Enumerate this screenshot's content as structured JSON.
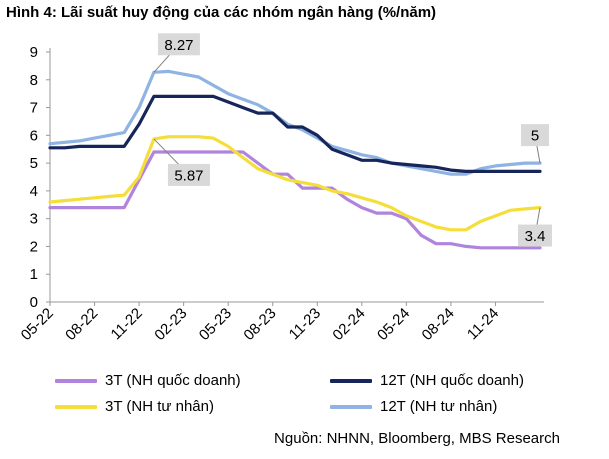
{
  "figure": {
    "title": "Hình 4: Lãi suất huy động của các nhóm ngân hàng (%/năm)",
    "source": "Nguồn: NHNN, Bloomberg, MBS Research"
  },
  "colors": {
    "3t_state": "#b084dc",
    "12t_state": "#17265a",
    "3t_private": "#f5de3a",
    "12t_private": "#8fb3e3",
    "axis": "#999999",
    "callout_bg": "#d9d9d9"
  },
  "chart_data": {
    "type": "line",
    "title": "Hình 4: Lãi suất huy động của các nhóm ngân hàng (%/năm)",
    "xlabel": "",
    "ylabel": "",
    "ylim": [
      0,
      9
    ],
    "yticks": [
      "0",
      "1",
      "2",
      "3",
      "4",
      "5",
      "6",
      "7",
      "8",
      "9"
    ],
    "xticks": [
      "05-22",
      "08-22",
      "11-22",
      "02-23",
      "05-23",
      "08-23",
      "11-23",
      "02-24",
      "05-24",
      "08-24",
      "11-24"
    ],
    "grid": false,
    "legend_position": "bottom",
    "x": [
      0,
      1,
      2,
      3,
      4,
      5,
      6,
      7,
      8,
      9,
      10,
      11,
      12,
      13,
      14,
      15,
      16,
      17,
      18,
      19,
      20,
      21,
      22,
      23,
      24,
      25,
      26,
      27,
      28,
      29,
      30,
      31,
      32,
      33
    ],
    "series": [
      {
        "name": "3T (NH quốc doanh)",
        "color_key": "3t_state",
        "values": [
          3.4,
          3.4,
          3.4,
          3.4,
          3.4,
          3.4,
          4.4,
          5.4,
          5.4,
          5.4,
          5.4,
          5.4,
          5.4,
          5.4,
          5.0,
          4.6,
          4.6,
          4.1,
          4.1,
          4.1,
          3.7,
          3.4,
          3.2,
          3.2,
          3.0,
          2.4,
          2.1,
          2.1,
          2.0,
          1.95,
          1.95,
          1.95,
          1.95,
          1.95
        ]
      },
      {
        "name": "12T (NH quốc doanh)",
        "color_key": "12t_state",
        "values": [
          5.55,
          5.55,
          5.6,
          5.6,
          5.6,
          5.6,
          6.4,
          7.4,
          7.4,
          7.4,
          7.4,
          7.4,
          7.2,
          7.0,
          6.8,
          6.8,
          6.3,
          6.3,
          6.0,
          5.5,
          5.3,
          5.1,
          5.1,
          5.0,
          4.95,
          4.9,
          4.85,
          4.75,
          4.7,
          4.7,
          4.7,
          4.7,
          4.7,
          4.7
        ]
      },
      {
        "name": "3T (NH tư nhân)",
        "color_key": "3t_private",
        "values": [
          3.6,
          3.65,
          3.7,
          3.75,
          3.8,
          3.85,
          4.5,
          5.87,
          5.95,
          5.95,
          5.95,
          5.9,
          5.6,
          5.2,
          4.8,
          4.6,
          4.4,
          4.3,
          4.2,
          4.0,
          3.9,
          3.75,
          3.6,
          3.4,
          3.1,
          2.9,
          2.7,
          2.6,
          2.6,
          2.9,
          3.1,
          3.3,
          3.35,
          3.4
        ]
      },
      {
        "name": "12T (NH tư nhân)",
        "color_key": "12t_private",
        "values": [
          5.7,
          5.75,
          5.8,
          5.9,
          6.0,
          6.1,
          7.0,
          8.27,
          8.3,
          8.2,
          8.1,
          7.8,
          7.5,
          7.3,
          7.1,
          6.8,
          6.4,
          6.2,
          5.9,
          5.6,
          5.45,
          5.3,
          5.2,
          5.0,
          4.9,
          4.8,
          4.7,
          4.6,
          4.6,
          4.8,
          4.9,
          4.95,
          5.0,
          5.0
        ]
      }
    ],
    "annotations": [
      {
        "text": "8.27",
        "series": "12T (NH tư nhân)"
      },
      {
        "text": "5.87",
        "series": "3T (NH tư nhân)"
      },
      {
        "text": "5",
        "series": "12T (NH tư nhân)"
      },
      {
        "text": "3.4",
        "series": "3T (NH tư nhân)"
      }
    ]
  }
}
